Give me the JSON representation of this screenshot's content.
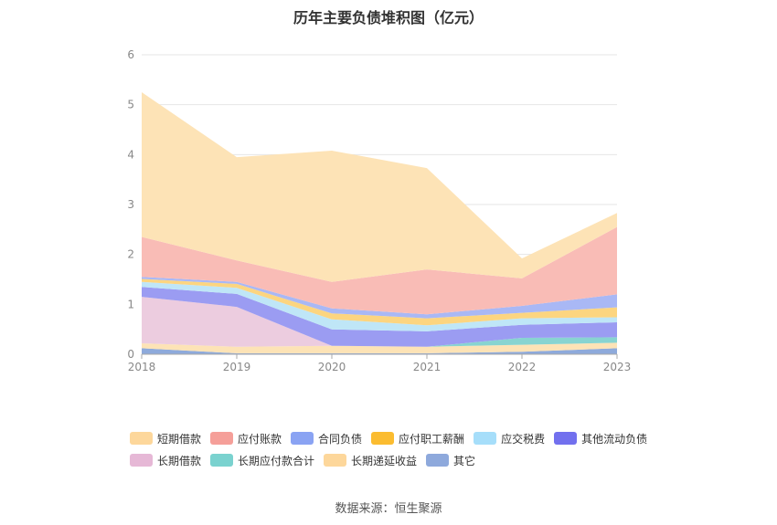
{
  "title": "历年主要负债堆积图（亿元）",
  "source": "数据来源：恒生聚源",
  "chart_data": {
    "type": "area",
    "stacked": true,
    "x": [
      "2018",
      "2019",
      "2020",
      "2021",
      "2022",
      "2023"
    ],
    "ylim": [
      0,
      6
    ],
    "yticks": [
      0,
      1,
      2,
      3,
      4,
      5,
      6
    ],
    "grid": true,
    "legend_position": "bottom",
    "series": [
      {
        "name": "其它",
        "color": "#8eaadb",
        "values": [
          0.12,
          0.02,
          0.02,
          0.02,
          0.05,
          0.12
        ]
      },
      {
        "name": "长期递延收益",
        "color": "#fde3b6",
        "values": [
          0.1,
          0.13,
          0.15,
          0.13,
          0.14,
          0.11
        ]
      },
      {
        "name": "长期应付款合计",
        "color": "#88d4d1",
        "values": [
          0.0,
          0.0,
          0.0,
          0.0,
          0.14,
          0.11
        ]
      },
      {
        "name": "长期借款",
        "color": "#ecccdf",
        "values": [
          0.93,
          0.8,
          0.0,
          0.0,
          0.0,
          0.0
        ]
      },
      {
        "name": "其他流动负债",
        "color": "#9b9cf2",
        "values": [
          0.2,
          0.26,
          0.33,
          0.31,
          0.26,
          0.3
        ]
      },
      {
        "name": "应交税费",
        "color": "#bfe6f7",
        "values": [
          0.1,
          0.12,
          0.2,
          0.12,
          0.13,
          0.1
        ]
      },
      {
        "name": "应付职工薪酬",
        "color": "#fcd580",
        "values": [
          0.06,
          0.08,
          0.12,
          0.14,
          0.11,
          0.2
        ]
      },
      {
        "name": "合同负债",
        "color": "#a9b8f5",
        "values": [
          0.04,
          0.04,
          0.1,
          0.08,
          0.14,
          0.26
        ]
      },
      {
        "name": "应付账款",
        "color": "#f9bcb6",
        "values": [
          0.8,
          0.43,
          0.53,
          0.9,
          0.55,
          1.35
        ]
      },
      {
        "name": "短期借款",
        "color": "#fde3b6",
        "values": [
          2.9,
          2.07,
          2.63,
          2.03,
          0.4,
          0.28
        ]
      }
    ],
    "legend": [
      {
        "name": "短期借款",
        "color": "#fdd79b"
      },
      {
        "name": "应付账款",
        "color": "#f59f99"
      },
      {
        "name": "合同负债",
        "color": "#8aa3f3"
      },
      {
        "name": "应付职工薪酬",
        "color": "#fbbc30"
      },
      {
        "name": "应交税费",
        "color": "#a6defa"
      },
      {
        "name": "其他流动负债",
        "color": "#7270ee"
      },
      {
        "name": "长期借款",
        "color": "#e6b8d6"
      },
      {
        "name": "长期应付款合计",
        "color": "#7ad2cf"
      },
      {
        "name": "长期递延收益",
        "color": "#fdd79b"
      },
      {
        "name": "其它",
        "color": "#8ea9dc"
      }
    ]
  }
}
